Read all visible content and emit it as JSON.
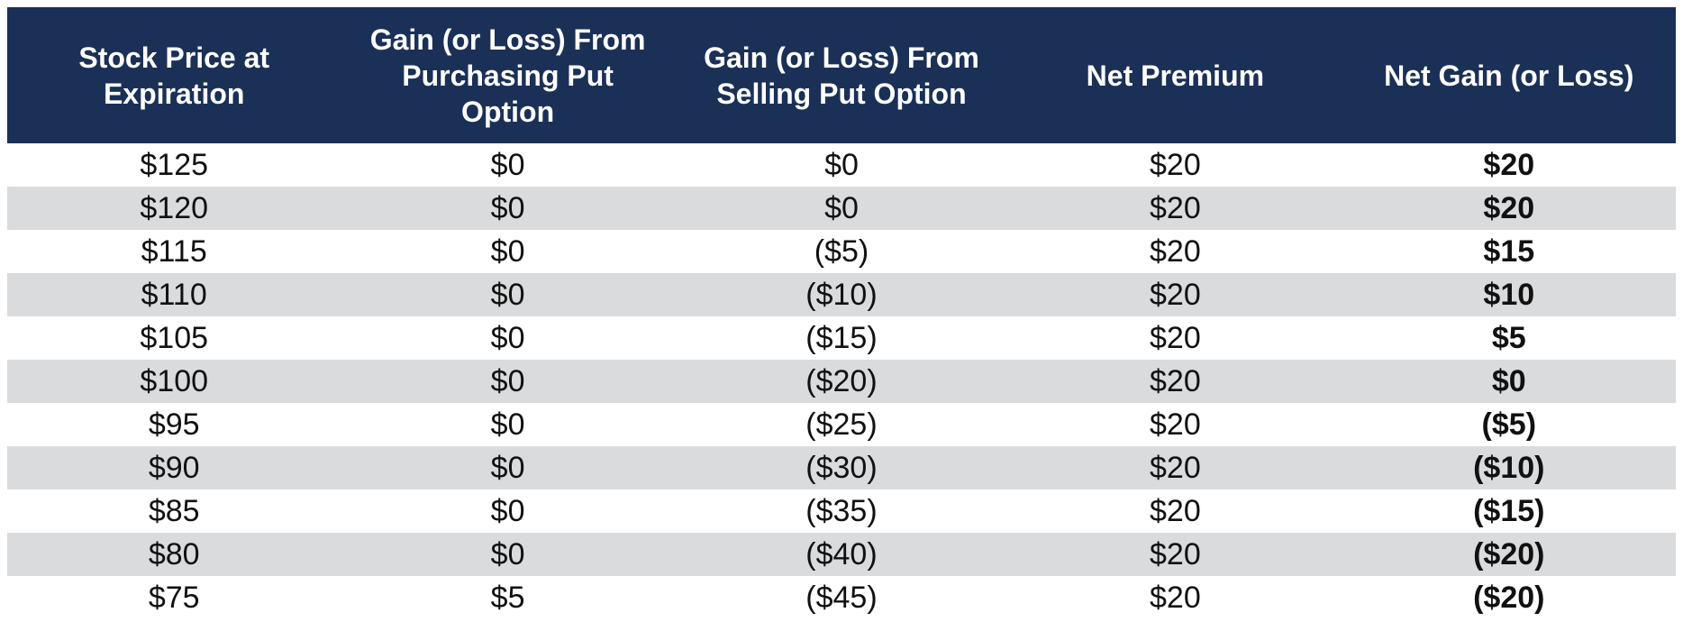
{
  "table": {
    "header": [
      "Stock Price at\nExpiration",
      "Gain (or Loss) From\nPurchasing Put\nOption",
      "Gain (or Loss) From\nSelling Put Option",
      "Net Premium",
      "Net Gain (or Loss)"
    ],
    "rows": [
      [
        "$125",
        "$0",
        "$0",
        "$20",
        "$20"
      ],
      [
        "$120",
        "$0",
        "$0",
        "$20",
        "$20"
      ],
      [
        "$115",
        "$0",
        "($5)",
        "$20",
        "$15"
      ],
      [
        "$110",
        "$0",
        "($10)",
        "$20",
        "$10"
      ],
      [
        "$105",
        "$0",
        "($15)",
        "$20",
        "$5"
      ],
      [
        "$100",
        "$0",
        "($20)",
        "$20",
        "$0"
      ],
      [
        "$95",
        "$0",
        "($25)",
        "$20",
        "($5)"
      ],
      [
        "$90",
        "$0",
        "($30)",
        "$20",
        "($10)"
      ],
      [
        "$85",
        "$0",
        "($35)",
        "$20",
        "($15)"
      ],
      [
        "$80",
        "$0",
        "($40)",
        "$20",
        "($20)"
      ],
      [
        "$75",
        "$5",
        "($45)",
        "$20",
        "($20)"
      ]
    ]
  },
  "colors": {
    "header_bg": "#1b3056",
    "header_text": "#ffffff",
    "row_bg": "#ffffff",
    "stripe_bg": "#dadbdd",
    "body_text": "#111111"
  }
}
